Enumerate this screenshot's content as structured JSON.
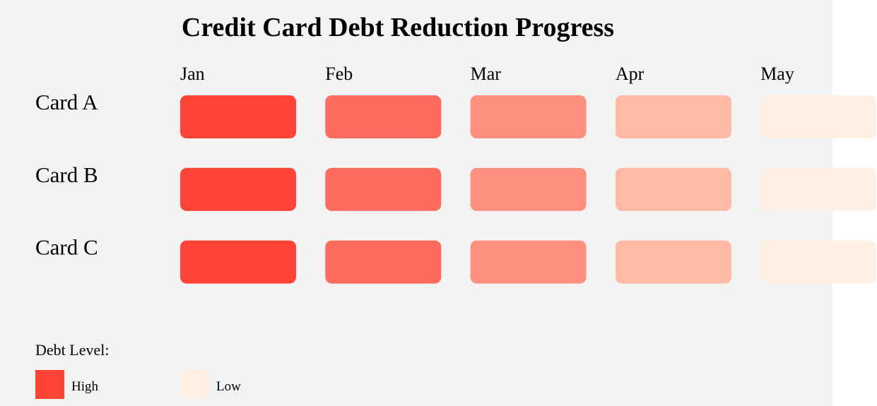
{
  "chart_data": {
    "type": "heatmap",
    "title": "Credit Card Debt Reduction Progress",
    "columns": [
      "Jan",
      "Feb",
      "Mar",
      "Apr",
      "May"
    ],
    "rows": [
      "Card A",
      "Card B",
      "Card C"
    ],
    "levels": [
      [
        5,
        4,
        3,
        2,
        1
      ],
      [
        5,
        4,
        3,
        2,
        1
      ],
      [
        5,
        4,
        3,
        2,
        1
      ]
    ],
    "level_colors": {
      "5": "#ff4436",
      "4": "#ff6b5c",
      "3": "#ff9080",
      "2": "#ffb9a4",
      "1": "#fff0e6"
    },
    "legend": {
      "title": "Debt Level:",
      "items": [
        {
          "label": "High",
          "color": "#ff4436"
        },
        {
          "label": "Low",
          "color": "#fff0e6"
        }
      ]
    }
  }
}
